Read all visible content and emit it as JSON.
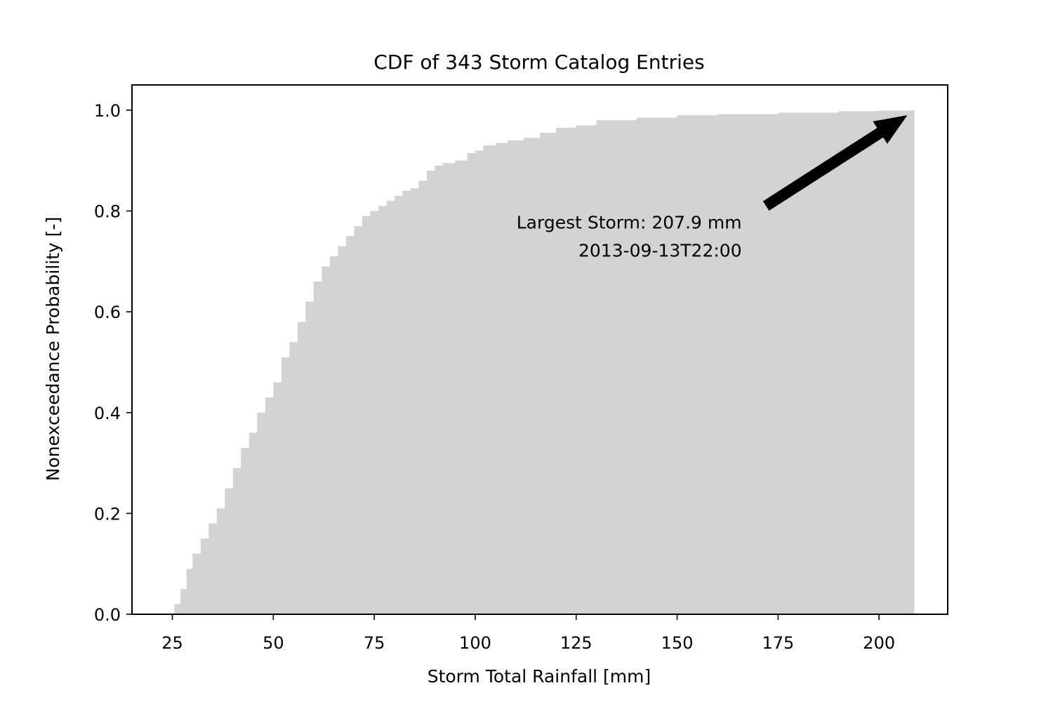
{
  "chart_data": {
    "type": "area",
    "title": "CDF of 343 Storm Catalog Entries",
    "xlabel": "Storm Total Rainfall [mm]",
    "ylabel": "Nonexceedance Probability [-]",
    "xlim": [
      15,
      217
    ],
    "ylim": [
      0,
      1.05
    ],
    "xticks": [
      25,
      50,
      75,
      100,
      125,
      150,
      175,
      200
    ],
    "xtick_labels": [
      "25",
      "50",
      "75",
      "100",
      "125",
      "150",
      "175",
      "200"
    ],
    "yticks": [
      0.0,
      0.2,
      0.4,
      0.6,
      0.8,
      1.0
    ],
    "ytick_labels": [
      "0.0",
      "0.2",
      "0.4",
      "0.6",
      "0.8",
      "1.0"
    ],
    "grid": false,
    "fill_color": "#d3d3d3",
    "series": [
      {
        "x": [
          24.5,
          25.5,
          27,
          28.5,
          30,
          32,
          34,
          36,
          38,
          40,
          42,
          44,
          46,
          48,
          50,
          52,
          54,
          56,
          58,
          60,
          62,
          64,
          66,
          68,
          70,
          72,
          74,
          76,
          78,
          80,
          82,
          84,
          86,
          88,
          90,
          92,
          95,
          98,
          100,
          102,
          105,
          108,
          112,
          116,
          120,
          125,
          130,
          140,
          150,
          160,
          175,
          190,
          200,
          207.9
        ],
        "y": [
          0.0,
          0.02,
          0.05,
          0.09,
          0.12,
          0.15,
          0.18,
          0.21,
          0.25,
          0.29,
          0.33,
          0.36,
          0.4,
          0.43,
          0.46,
          0.51,
          0.54,
          0.58,
          0.62,
          0.66,
          0.69,
          0.71,
          0.73,
          0.75,
          0.77,
          0.79,
          0.8,
          0.81,
          0.82,
          0.83,
          0.84,
          0.845,
          0.86,
          0.88,
          0.89,
          0.895,
          0.9,
          0.915,
          0.92,
          0.93,
          0.935,
          0.94,
          0.945,
          0.955,
          0.965,
          0.97,
          0.98,
          0.985,
          0.99,
          0.992,
          0.995,
          0.998,
          0.999,
          1.0
        ]
      }
    ],
    "annotation": {
      "line1": "Largest Storm: 207.9 mm",
      "line2": "2013-09-13T22:00",
      "arrow_from": [
        172,
        0.81
      ],
      "arrow_to": [
        207,
        0.99
      ],
      "text_anchor_x": 166,
      "text_anchor_y": 0.765
    }
  }
}
